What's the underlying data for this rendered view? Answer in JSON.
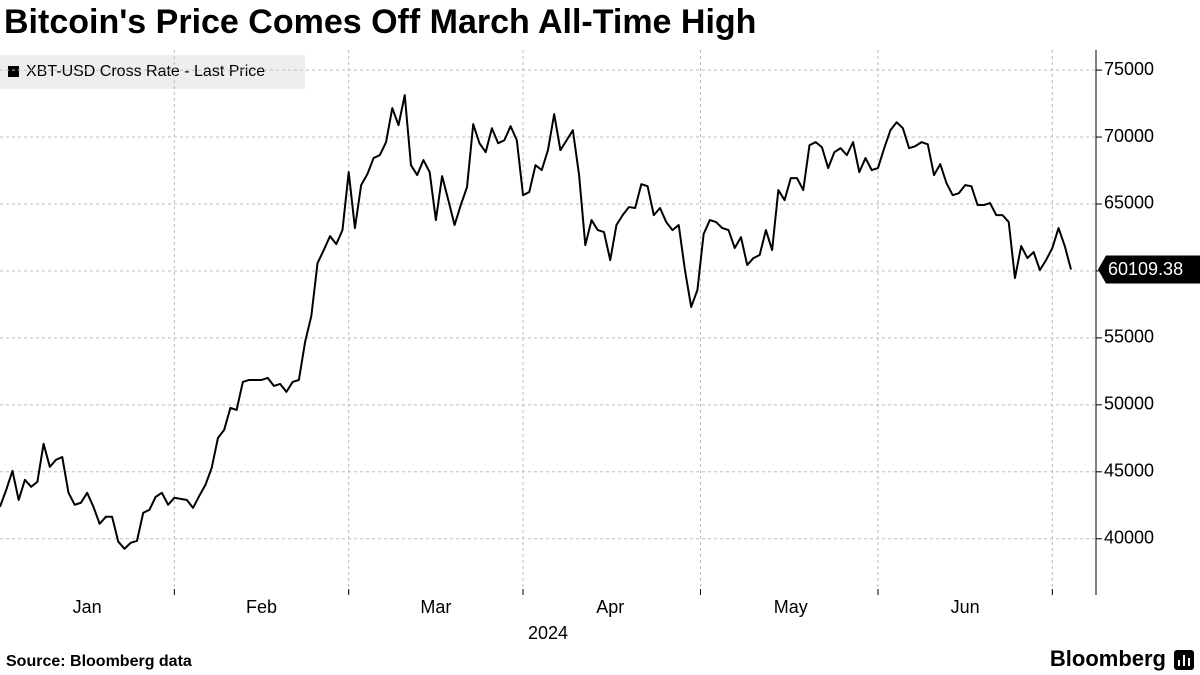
{
  "chart_data": {
    "type": "line",
    "title": "Bitcoin's Price Comes Off March All-Time High",
    "xlabel": "2024",
    "source": "Source: Bloomberg data",
    "brand": "Bloomberg",
    "legend": "upper left",
    "grid": true,
    "ylim": [
      35800,
      76500
    ],
    "yticks": [
      40000,
      45000,
      50000,
      55000,
      60000,
      65000,
      70000,
      75000
    ],
    "categories": [
      null,
      null,
      null,
      null,
      null,
      null,
      null,
      null,
      null,
      null,
      null,
      null,
      null,
      null,
      "Jan",
      null,
      null,
      null,
      null,
      null,
      null,
      null,
      null,
      null,
      null,
      null,
      null,
      null,
      null,
      null,
      null,
      null,
      null,
      null,
      null,
      null,
      null,
      null,
      null,
      null,
      null,
      null,
      "Feb",
      null,
      null,
      null,
      null,
      null,
      null,
      null,
      null,
      null,
      null,
      null,
      null,
      null,
      null,
      null,
      null,
      null,
      null,
      null,
      null,
      null,
      null,
      null,
      null,
      null,
      null,
      null,
      "Mar",
      null,
      null,
      null,
      null,
      null,
      null,
      null,
      null,
      null,
      null,
      null,
      null,
      null,
      null,
      null,
      null,
      null,
      null,
      null,
      null,
      null,
      null,
      null,
      null,
      null,
      null,
      null,
      "Apr",
      null,
      null,
      null,
      null,
      null,
      null,
      null,
      null,
      null,
      null,
      null,
      null,
      null,
      null,
      null,
      null,
      null,
      null,
      null,
      null,
      null,
      null,
      null,
      null,
      null,
      null,
      null,
      null,
      "May",
      null,
      null,
      null,
      null,
      null,
      null,
      null,
      null,
      null,
      null,
      null,
      null,
      null,
      null,
      null,
      null,
      null,
      null,
      null,
      null,
      null,
      null,
      null,
      null,
      null,
      null,
      null,
      "Jun",
      null,
      null,
      null,
      null,
      null,
      null,
      null,
      null,
      null,
      null,
      null,
      null,
      null,
      null,
      null,
      null,
      null
    ],
    "series": [
      {
        "name": "XBT-USD Cross Rate - Last Price",
        "color": "#000000",
        "values": [
          42390,
          43650,
          45070,
          42900,
          44400,
          43880,
          44250,
          47090,
          45370,
          45900,
          46100,
          43430,
          42540,
          42690,
          43430,
          42390,
          41120,
          41640,
          41640,
          39780,
          39250,
          39700,
          39850,
          41940,
          42160,
          43130,
          43430,
          42540,
          43060,
          42980,
          42900,
          42310,
          43200,
          44030,
          45300,
          47530,
          48130,
          49770,
          49620,
          51710,
          51860,
          51860,
          51860,
          52010,
          51410,
          51560,
          50970,
          51710,
          51860,
          54700,
          56640,
          60590,
          61560,
          62600,
          62000,
          63050,
          67380,
          63200,
          66410,
          67230,
          68430,
          68650,
          69620,
          72160,
          70890,
          73130,
          67900,
          67160,
          68280,
          67380,
          63800,
          67080,
          65290,
          63430,
          64920,
          66260,
          70960,
          69540,
          68870,
          70660,
          69540,
          69760,
          70810,
          69760,
          65660,
          65890,
          67900,
          67530,
          69020,
          71710,
          69020,
          69760,
          70510,
          67160,
          61930,
          63800,
          63050,
          62900,
          60810,
          63430,
          64170,
          64770,
          64700,
          66480,
          66330,
          64170,
          64700,
          63650,
          63050,
          63430,
          60070,
          57310,
          58570,
          62750,
          63800,
          63650,
          63200,
          63050,
          61710,
          62530,
          60440,
          60960,
          61190,
          63050,
          61560,
          66040,
          65290,
          66930,
          66930,
          66040,
          69390,
          69620,
          69240,
          67680,
          68870,
          69170,
          68650,
          69620,
          67380,
          68430,
          67530,
          67680,
          69170,
          70510,
          71110,
          70660,
          69170,
          69320,
          69620,
          69460,
          67160,
          67980,
          66560,
          65660,
          65810,
          66410,
          66330,
          64920,
          64920,
          65070,
          64170,
          64170,
          63650,
          59470,
          61860,
          60960,
          61410,
          60070,
          60810,
          61710,
          63200,
          61860,
          60109.38
        ]
      }
    ]
  }
}
